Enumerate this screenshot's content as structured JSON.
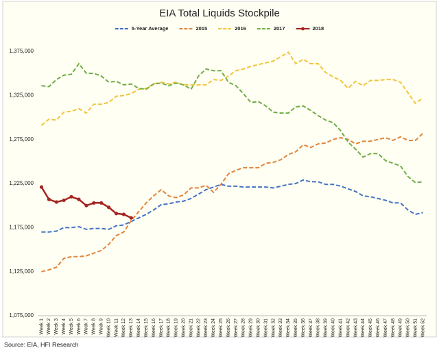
{
  "chart_data": {
    "type": "line",
    "title": "EIA Total Liquids Stockpile",
    "source": "Source: EIA, HFI Research",
    "categories": [
      "Week 1",
      "Week 2",
      "Week 3",
      "Week 4",
      "Week 5",
      "Week 6",
      "Week 7",
      "Week 8",
      "Week 9",
      "Week 10",
      "Week 11",
      "Week 12",
      "Week 13",
      "Week 14",
      "Week 15",
      "Week 16",
      "Week 17",
      "Week 18",
      "Week 19",
      "Week 20",
      "Week 21",
      "Week 22",
      "Week 23",
      "Week 24",
      "Week 25",
      "Week 26",
      "Week 27",
      "Week 28",
      "Week 29",
      "Week 30",
      "Week 31",
      "Week 32",
      "Week 33",
      "Week 34",
      "Week 35",
      "Week 36",
      "Week 37",
      "Week 38",
      "Week 39",
      "Week 40",
      "Week 41",
      "Week 42",
      "Week 43",
      "Week 44",
      "Week 45",
      "Week 46",
      "Week 47",
      "Week 48",
      "Week 49",
      "Week 50",
      "Week 51",
      "Week 52"
    ],
    "series": [
      {
        "name": "5-Year Average",
        "color": "#4472c4",
        "style": "dashed",
        "markers": false,
        "values": [
          1170000,
          1170000,
          1171000,
          1175000,
          1175000,
          1176000,
          1173000,
          1174000,
          1174000,
          1173000,
          1177000,
          1178000,
          1182000,
          1186000,
          1190000,
          1195000,
          1201000,
          1202000,
          1204000,
          1205000,
          1208000,
          1213000,
          1218000,
          1221000,
          1224000,
          1222000,
          1222000,
          1221000,
          1221000,
          1221000,
          1221000,
          1220000,
          1222000,
          1224000,
          1225000,
          1229000,
          1227000,
          1227000,
          1224000,
          1224000,
          1222000,
          1219000,
          1216000,
          1211000,
          1210000,
          1208000,
          1206000,
          1203000,
          1203000,
          1195000,
          1190000,
          1192000
        ]
      },
      {
        "name": "2015",
        "color": "#e0843a",
        "style": "dashed",
        "markers": false,
        "values": [
          1125000,
          1127000,
          1130000,
          1140000,
          1142000,
          1142000,
          1143000,
          1146000,
          1149000,
          1156000,
          1166000,
          1170000,
          1183000,
          1193000,
          1203000,
          1211000,
          1218000,
          1211000,
          1209000,
          1212000,
          1220000,
          1220000,
          1223000,
          1215000,
          1224000,
          1236000,
          1240000,
          1243000,
          1243000,
          1243000,
          1248000,
          1249000,
          1252000,
          1258000,
          1261000,
          1269000,
          1266000,
          1270000,
          1271000,
          1275000,
          1277000,
          1275000,
          1270000,
          1273000,
          1273000,
          1275000,
          1277000,
          1274000,
          1278000,
          1274000,
          1274000,
          1282000
        ]
      },
      {
        "name": "2016",
        "color": "#f2c43c",
        "style": "dashed",
        "markers": false,
        "values": [
          1291000,
          1298000,
          1297000,
          1306000,
          1307000,
          1310000,
          1305000,
          1315000,
          1315000,
          1317000,
          1324000,
          1325000,
          1327000,
          1332000,
          1333000,
          1338000,
          1340000,
          1338000,
          1340000,
          1337000,
          1337000,
          1337000,
          1337000,
          1343000,
          1342000,
          1347000,
          1353000,
          1355000,
          1358000,
          1360000,
          1362000,
          1364000,
          1369000,
          1374000,
          1361000,
          1366000,
          1361000,
          1361000,
          1351000,
          1346000,
          1342000,
          1333000,
          1341000,
          1336000,
          1342000,
          1342000,
          1343000,
          1343000,
          1340000,
          1328000,
          1316000,
          1322000
        ]
      },
      {
        "name": "2017",
        "color": "#70ad47",
        "style": "dashed",
        "markers": false,
        "values": [
          1336000,
          1335000,
          1343000,
          1348000,
          1349000,
          1361000,
          1350000,
          1350000,
          1347000,
          1340000,
          1341000,
          1337000,
          1338000,
          1333000,
          1332000,
          1338000,
          1339000,
          1336000,
          1339000,
          1337000,
          1332000,
          1347000,
          1355000,
          1353000,
          1353000,
          1340000,
          1336000,
          1327000,
          1317000,
          1318000,
          1313000,
          1306000,
          1305000,
          1305000,
          1312000,
          1313000,
          1308000,
          1302000,
          1297000,
          1294000,
          1285000,
          1272000,
          1264000,
          1255000,
          1259000,
          1259000,
          1251000,
          1248000,
          1245000,
          1233000,
          1226000,
          1227000
        ]
      },
      {
        "name": "2018",
        "color": "#a52520",
        "style": "solid",
        "markers": true,
        "values": [
          1221000,
          1207000,
          1204000,
          1206000,
          1210000,
          1207000,
          1200000,
          1203000,
          1203000,
          1198000,
          1191000,
          1190000,
          1186000,
          null,
          null,
          null,
          null,
          null,
          null,
          null,
          null,
          null,
          null,
          null,
          null,
          null,
          null,
          null,
          null,
          null,
          null,
          null,
          null,
          null,
          null,
          null,
          null,
          null,
          null,
          null,
          null,
          null,
          null,
          null,
          null,
          null,
          null,
          null,
          null,
          null,
          null,
          null
        ]
      }
    ],
    "ylim": [
      1075000,
      1375000
    ],
    "yticks": [
      {
        "value": 1075000,
        "label": "1,075,000"
      },
      {
        "value": 1125000,
        "label": "1,125,000"
      },
      {
        "value": 1175000,
        "label": "1,175,000"
      },
      {
        "value": 1225000,
        "label": "1,225,000"
      },
      {
        "value": 1275000,
        "label": "1,275,000"
      },
      {
        "value": 1325000,
        "label": "1,325,000"
      },
      {
        "value": 1375000,
        "label": "1,375,000"
      }
    ],
    "grid": false,
    "legend": "top"
  }
}
